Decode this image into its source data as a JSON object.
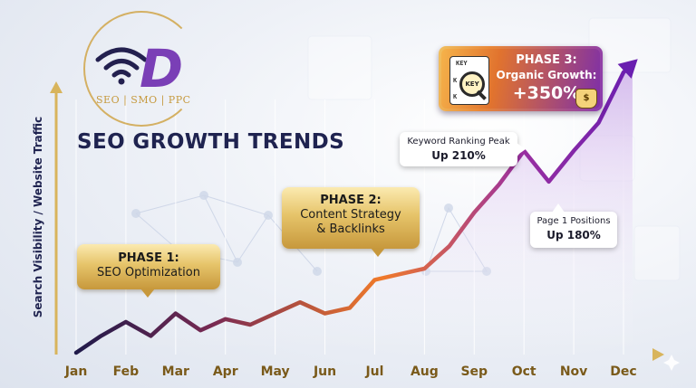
{
  "brand": {
    "mark": "D",
    "tagline": "SEO | SMO | PPC"
  },
  "colors": {
    "line_start": "#1f1a4a",
    "line_mid": "#f07a2a",
    "line_end": "#6a1fb0",
    "gold": "#e6c46a",
    "area": "#c9a6e8"
  },
  "chart_data": {
    "type": "line",
    "title": "SEO GROWTH TRENDS",
    "ylabel": "Search Visibility / Website Traffic",
    "xlabel": "",
    "categories": [
      "Jan",
      "Feb",
      "Mar",
      "Apr",
      "May",
      "Jun",
      "Jul",
      "Aug",
      "Sep",
      "Oct",
      "Nov",
      "Dec"
    ],
    "ylim": [
      0,
      100
    ],
    "grid": true,
    "series": [
      {
        "x": [
          0,
          0.5,
          1.0,
          1.5,
          2.0,
          2.5,
          3.0,
          3.5,
          4.0,
          4.5,
          5.0,
          5.5,
          6.0,
          6.5,
          7.0,
          7.5,
          8.0,
          8.5,
          9.0,
          9.5,
          10.0,
          10.5,
          11.0,
          11.18
        ],
        "values": [
          0,
          6,
          11,
          6,
          14,
          8,
          12,
          10,
          14,
          18,
          14,
          16,
          26,
          28,
          30,
          38,
          50,
          60,
          72,
          61,
          72,
          82,
          100,
          103
        ]
      }
    ],
    "annotations": [
      {
        "type": "phase",
        "title": "PHASE 1:",
        "text": "SEO Optimization"
      },
      {
        "type": "phase",
        "title": "PHASE 2:",
        "text": "Content Strategy\n& Backlinks"
      },
      {
        "type": "peak",
        "label": "Keyword Ranking Peak",
        "value": "Up 210%"
      },
      {
        "type": "peak",
        "label": "Page 1 Positions",
        "value": "Up 180%"
      },
      {
        "type": "phase",
        "title": "PHASE 3:",
        "subtitle": "Organic Growth:",
        "value": "+350%",
        "icon_text": "KEY",
        "icon_rows": [
          "KEY",
          "K",
          "K"
        ],
        "badge": "$"
      }
    ]
  }
}
